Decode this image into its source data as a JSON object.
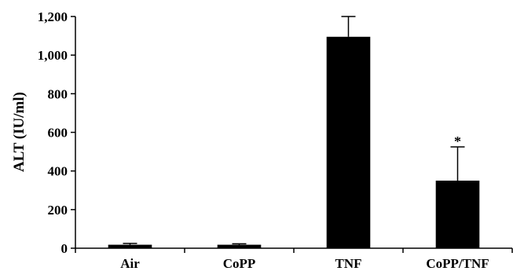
{
  "chart_data": {
    "type": "bar",
    "title": "",
    "xlabel": "",
    "ylabel": "ALT (IU/ml)",
    "ylim": [
      0,
      1200
    ],
    "yticks": [
      0,
      200,
      400,
      600,
      800,
      1000,
      1200
    ],
    "ytick_labels": [
      "0",
      "200",
      "400",
      "600",
      "800",
      "1,000",
      "1,200"
    ],
    "categories": [
      "Air",
      "CoPP",
      "TNF",
      "CoPP/TNF"
    ],
    "values": [
      18,
      18,
      1095,
      350
    ],
    "error_upper": [
      7,
      5,
      105,
      175
    ],
    "annotations": [
      "",
      "",
      "",
      "*"
    ],
    "bar_color": "#000000",
    "grid": false,
    "legend": "none"
  }
}
